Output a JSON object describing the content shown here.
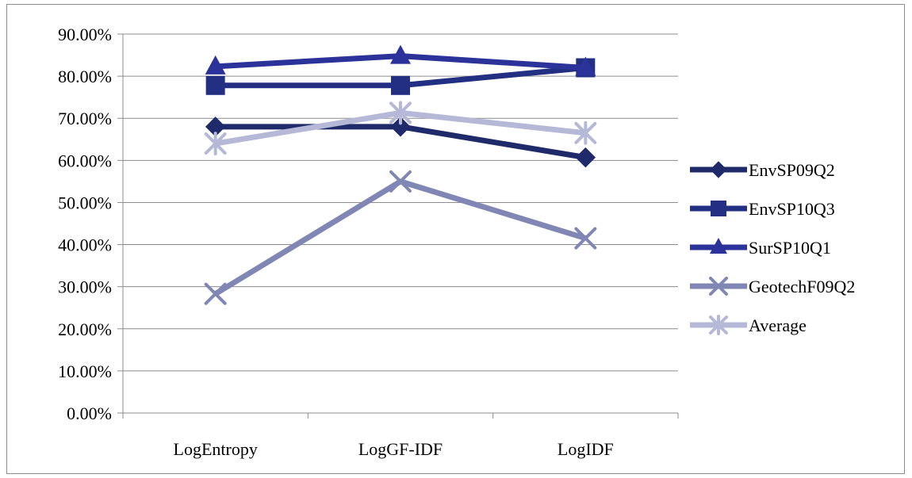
{
  "chart_data": {
    "type": "line",
    "title": "",
    "xlabel": "",
    "ylabel": "",
    "categories": [
      "LogEntropy",
      "LogGF-IDF",
      "LogIDF"
    ],
    "ylim": [
      0,
      0.9
    ],
    "yticks": [
      "0.00%",
      "10.00%",
      "20.00%",
      "30.00%",
      "40.00%",
      "50.00%",
      "60.00%",
      "70.00%",
      "80.00%",
      "90.00%"
    ],
    "grid": true,
    "legend_position": "right",
    "series": [
      {
        "name": "EnvSP09Q2",
        "marker": "diamond",
        "color": "#1f2a6b",
        "values": [
          0.68,
          0.68,
          0.607
        ]
      },
      {
        "name": "EnvSP10Q3",
        "marker": "square",
        "color": "#232f82",
        "values": [
          0.778,
          0.778,
          0.82
        ]
      },
      {
        "name": "SurSP10Q1",
        "marker": "triangle",
        "color": "#2b339a",
        "values": [
          0.823,
          0.848,
          0.82
        ]
      },
      {
        "name": "GeotechF09Q2",
        "marker": "x",
        "color": "#8087b5",
        "values": [
          0.283,
          0.55,
          0.415
        ]
      },
      {
        "name": "Average",
        "marker": "star",
        "color": "#b5b8d6",
        "values": [
          0.64,
          0.713,
          0.665
        ]
      }
    ]
  }
}
